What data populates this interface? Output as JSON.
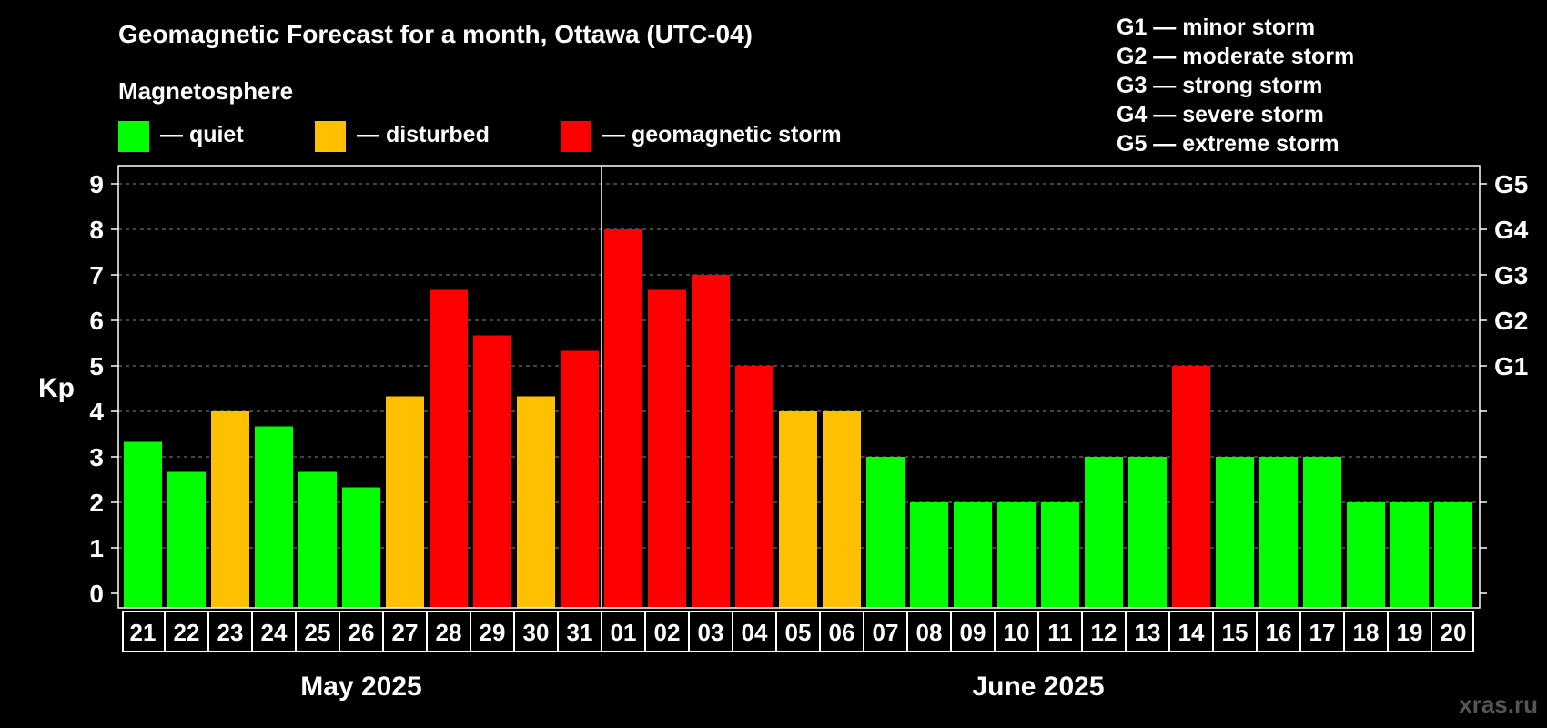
{
  "title": "Geomagnetic Forecast for a month, Ottawa (UTC-04)",
  "legend": {
    "title": "Magnetosphere",
    "items": [
      {
        "label": "— quiet",
        "color": "#00ff00"
      },
      {
        "label": "— disturbed",
        "color": "#ffc000"
      },
      {
        "label": "— geomagnetic storm",
        "color": "#ff0000"
      }
    ]
  },
  "storm_levels": [
    "G1 — minor storm",
    "G2 — moderate storm",
    "G3 — strong storm",
    "G4 — severe storm",
    "G5 — extreme storm"
  ],
  "watermark": "xras.ru",
  "chart_data": {
    "type": "bar",
    "ylabel": "Kp",
    "ylim": [
      0,
      9
    ],
    "yticks": [
      0,
      1,
      2,
      3,
      4,
      5,
      6,
      7,
      8,
      9
    ],
    "right_axis_labels": [
      {
        "kp": 5,
        "label": "G1"
      },
      {
        "kp": 6,
        "label": "G2"
      },
      {
        "kp": 7,
        "label": "G3"
      },
      {
        "kp": 8,
        "label": "G4"
      },
      {
        "kp": 9,
        "label": "G5"
      }
    ],
    "grid": true,
    "months": [
      {
        "label": "May 2025",
        "first_index": 0,
        "count": 11
      },
      {
        "label": "June 2025",
        "first_index": 11,
        "count": 20
      }
    ],
    "categories": [
      "21",
      "22",
      "23",
      "24",
      "25",
      "26",
      "27",
      "28",
      "29",
      "30",
      "31",
      "01",
      "02",
      "03",
      "04",
      "05",
      "06",
      "07",
      "08",
      "09",
      "10",
      "11",
      "12",
      "13",
      "14",
      "15",
      "16",
      "17",
      "18",
      "19",
      "20"
    ],
    "values": [
      3.33,
      2.67,
      4,
      3.67,
      2.67,
      2.33,
      4.33,
      6.67,
      5.67,
      4.33,
      5.33,
      8,
      6.67,
      7,
      5,
      4,
      4,
      3,
      2,
      2,
      2,
      2,
      3,
      3,
      5,
      3,
      3,
      3,
      2,
      2,
      2
    ],
    "colors": {
      "quiet": "#00ff00",
      "disturbed": "#ffc000",
      "storm": "#ff0000"
    },
    "thresholds": {
      "disturbed": 4,
      "storm": 5
    }
  }
}
